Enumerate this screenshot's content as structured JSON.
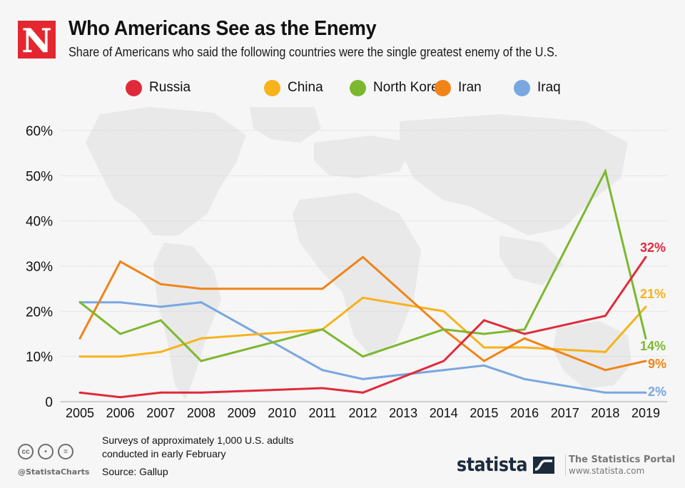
{
  "header": {
    "logo_letter": "N",
    "title": "Who Americans See as the Enemy",
    "subtitle": "Share of Americans who said the following countries were the single greatest enemy of the U.S."
  },
  "chart_data": {
    "type": "line",
    "title": "Who Americans See as the Enemy",
    "subtitle": "Share of Americans who said the following countries were the single greatest enemy of the U.S.",
    "xlabel": "",
    "ylabel": "",
    "x_ticks": [
      "2005",
      "2006",
      "2007",
      "2008",
      "2009",
      "2010",
      "2011",
      "2012",
      "2013",
      "2014",
      "2015",
      "2016",
      "2017",
      "2018",
      "2019"
    ],
    "y_ticks": [
      "0",
      "10%",
      "20%",
      "30%",
      "40%",
      "50%",
      "60%"
    ],
    "y_tick_values": [
      0,
      10,
      20,
      30,
      40,
      50,
      60
    ],
    "ylim": [
      0,
      60
    ],
    "grid": true,
    "legend_position": "top-center",
    "x": [
      2005,
      2006,
      2007,
      2008,
      2011,
      2012,
      2014,
      2015,
      2016,
      2018,
      2019
    ],
    "series": [
      {
        "name": "Russia",
        "color": "#e02a3b",
        "values": [
          2,
          1,
          2,
          2,
          3,
          2,
          9,
          18,
          15,
          19,
          32
        ],
        "end_label": "32%"
      },
      {
        "name": "China",
        "color": "#f7b21c",
        "values": [
          10,
          10,
          11,
          14,
          16,
          23,
          20,
          12,
          12,
          11,
          21
        ],
        "end_label": "21%"
      },
      {
        "name": "North Korea",
        "color": "#7cb82f",
        "values": [
          22,
          15,
          18,
          9,
          16,
          10,
          16,
          15,
          16,
          51,
          14
        ],
        "end_label": "14%"
      },
      {
        "name": "Iran",
        "color": "#f08418",
        "values": [
          14,
          31,
          26,
          25,
          25,
          32,
          16,
          9,
          14,
          7,
          9
        ],
        "end_label": "9%"
      },
      {
        "name": "Iraq",
        "color": "#79a7e0",
        "values": [
          22,
          22,
          21,
          22,
          7,
          5,
          7,
          8,
          5,
          2,
          2
        ],
        "end_label": "2%"
      }
    ]
  },
  "footer": {
    "note_line1": "Surveys of approximately 1,000 U.S. adults",
    "note_line2": "conducted in early February",
    "source": "Source: Gallup",
    "handle": "@StatistaCharts",
    "cc_icons": [
      "cc-icon",
      "by-icon",
      "nd-icon"
    ],
    "cc_glyphs": [
      "cc",
      "•",
      "="
    ],
    "brand": "statista",
    "portal_title": "The Statistics Portal",
    "portal_url": "www.statista.com"
  }
}
